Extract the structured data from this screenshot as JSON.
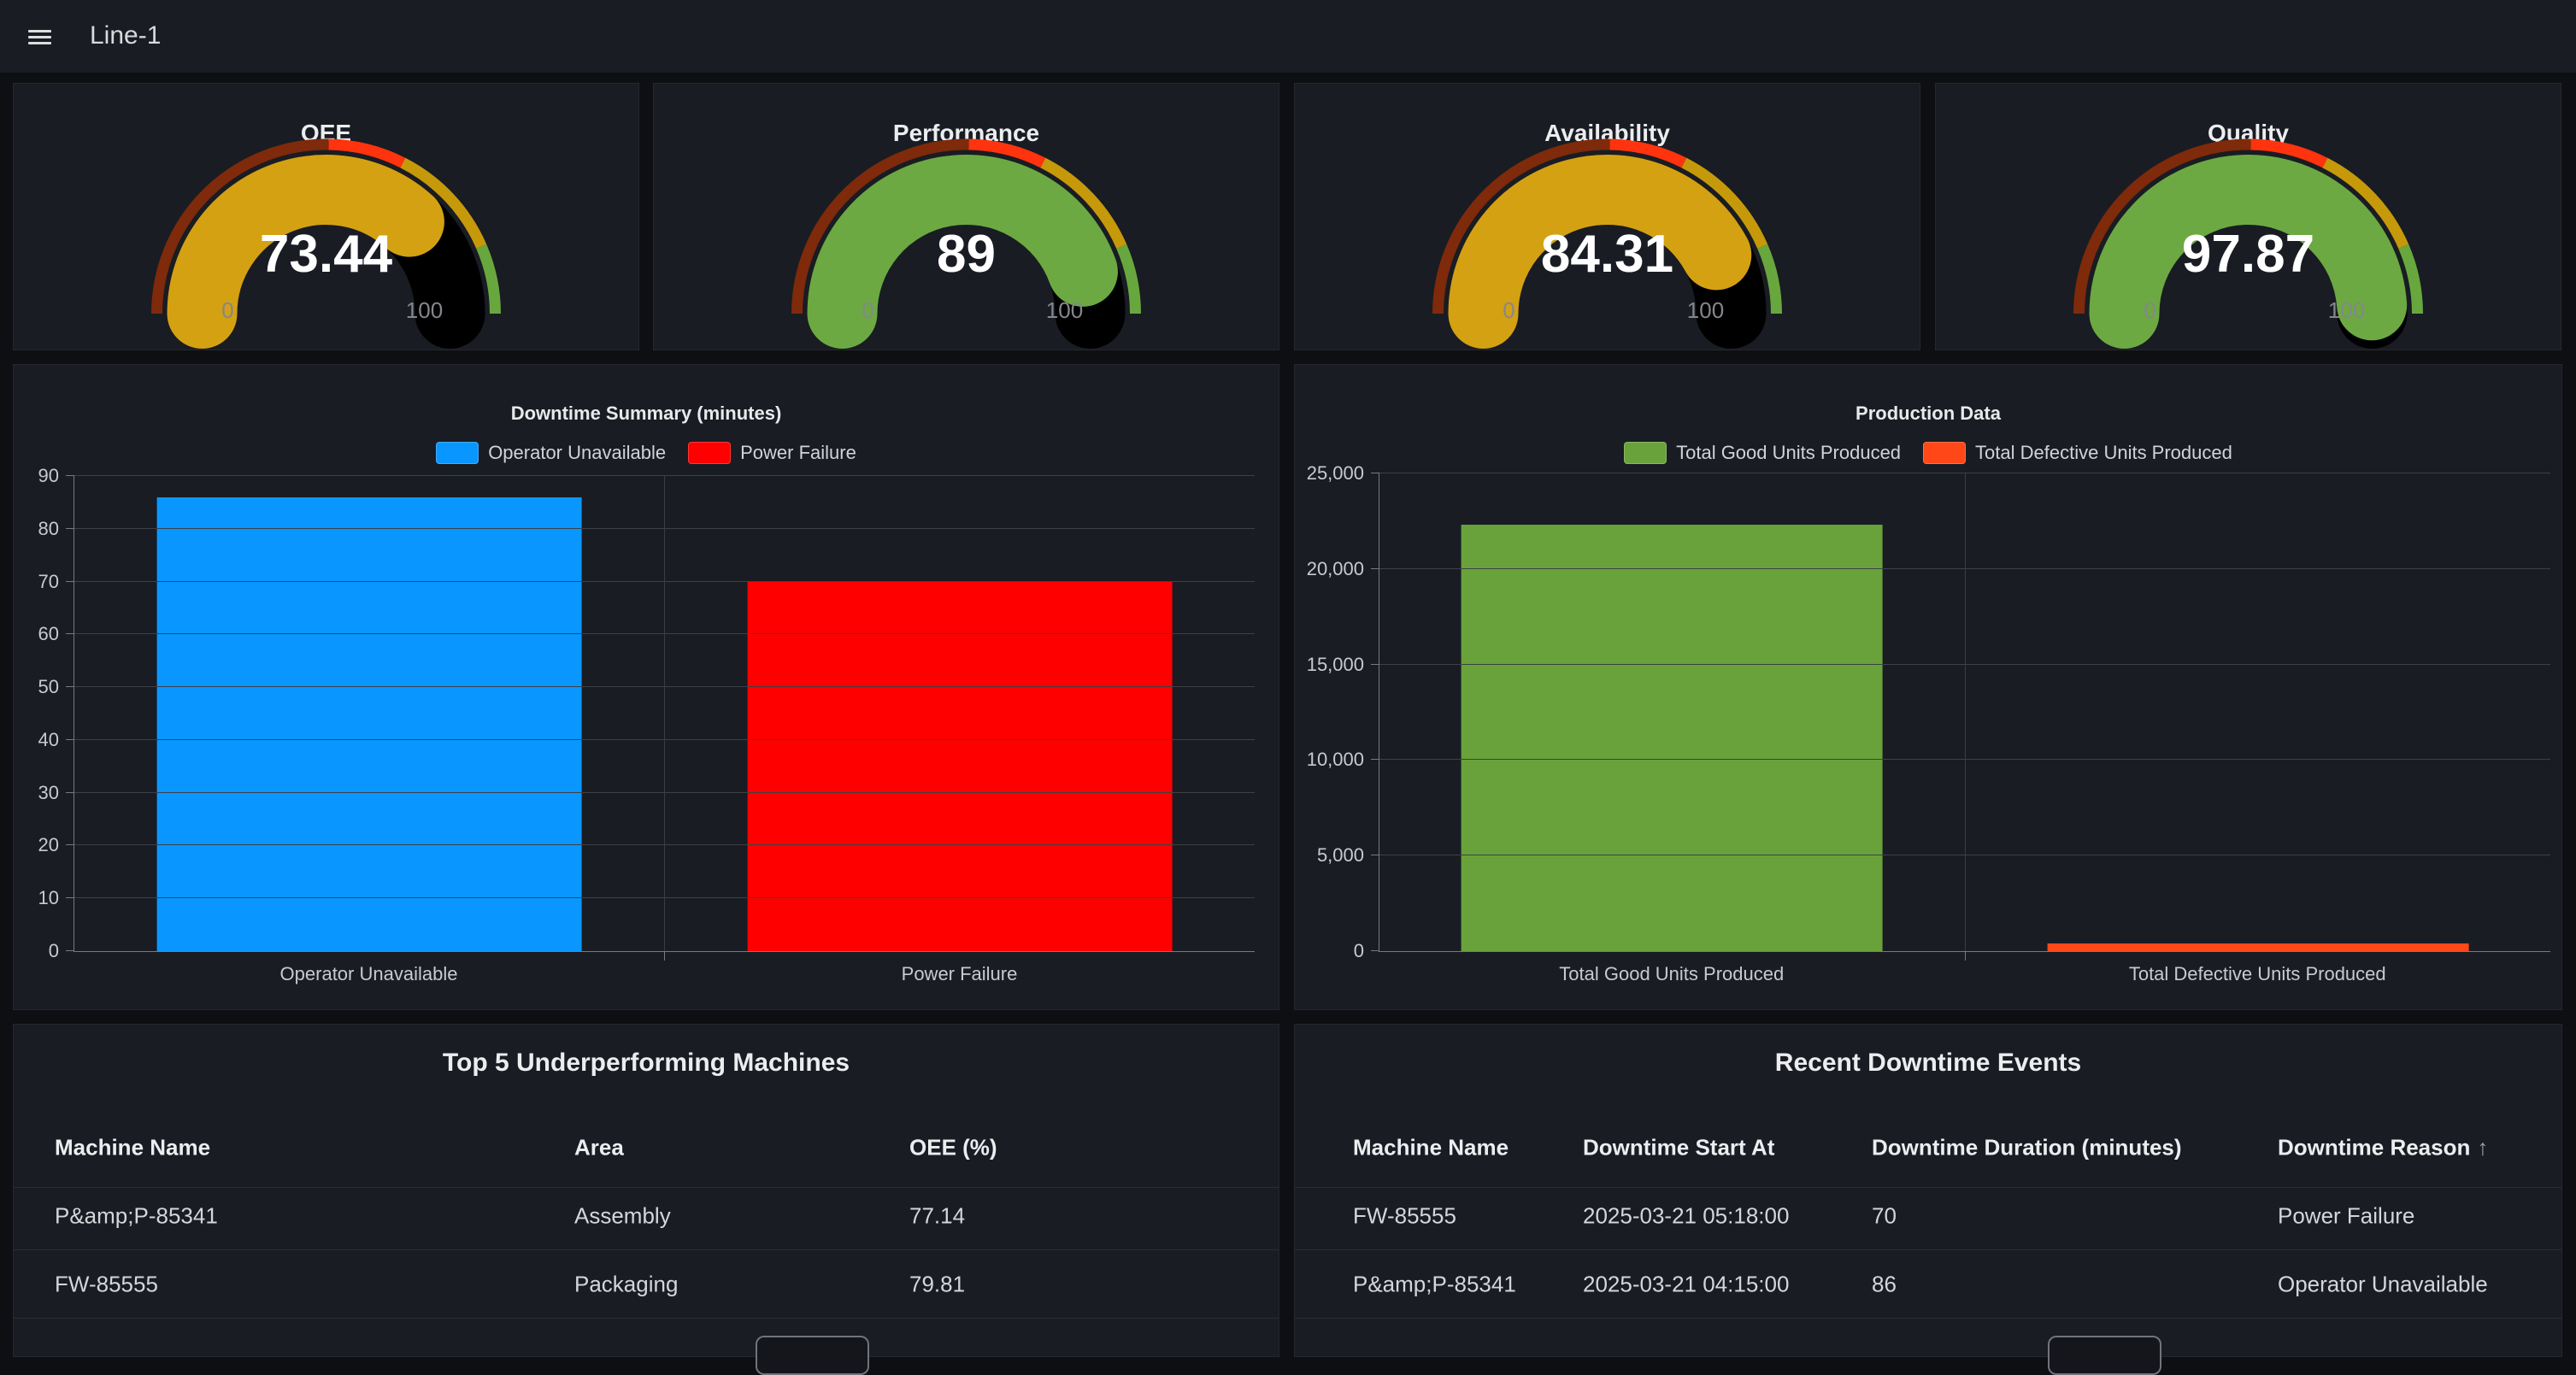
{
  "topbar": {
    "title": "Line-1"
  },
  "gauges": [
    {
      "title": "OEE",
      "value": "73.44",
      "pct": 73.44,
      "color": "#D4A112",
      "min": "0",
      "max": "100"
    },
    {
      "title": "Performance",
      "value": "89",
      "pct": 89,
      "color": "#6CA942",
      "min": "0",
      "max": "100"
    },
    {
      "title": "Availability",
      "value": "84.31",
      "pct": 84.31,
      "color": "#D4A112",
      "min": "0",
      "max": "100"
    },
    {
      "title": "Quality",
      "value": "97.87",
      "pct": 97.87,
      "color": "#6CA942",
      "min": "0",
      "max": "100"
    }
  ],
  "gauge_thresholds": [
    {
      "from": 0,
      "to": 50.5,
      "color": "#7E2A0B"
    },
    {
      "from": 50.5,
      "to": 65,
      "color": "#FF330D"
    },
    {
      "from": 65,
      "to": 87,
      "color": "#C6990B"
    },
    {
      "from": 87,
      "to": 100,
      "color": "#68A73E"
    }
  ],
  "chart_data": [
    {
      "type": "bar",
      "title": "Downtime Summary (minutes)",
      "categories": [
        "Operator Unavailable",
        "Power Failure"
      ],
      "values": [
        86,
        70
      ],
      "colors": [
        "#0997FF",
        "#FF0000"
      ],
      "legend": [
        "Operator Unavailable",
        "Power Failure"
      ],
      "legend_position": "top",
      "grid": true,
      "xlabel": "",
      "ylabel": "",
      "ylim": [
        0,
        90
      ],
      "yticks": [
        0,
        10,
        20,
        30,
        40,
        50,
        60,
        70,
        80,
        90
      ],
      "ytick_labels": [
        "0",
        "10",
        "20",
        "30",
        "40",
        "50",
        "60",
        "70",
        "80",
        "90"
      ]
    },
    {
      "type": "bar",
      "title": "Production Data",
      "categories": [
        "Total Good Units Produced",
        "Total Defective Units Produced"
      ],
      "values": [
        22300,
        400
      ],
      "colors": [
        "#69A23A",
        "#FF4718"
      ],
      "legend": [
        "Total Good Units Produced",
        "Total Defective Units Produced"
      ],
      "legend_position": "top",
      "grid": true,
      "xlabel": "",
      "ylabel": "",
      "ylim": [
        0,
        25000
      ],
      "yticks": [
        0,
        5000,
        10000,
        15000,
        20000,
        25000
      ],
      "ytick_labels": [
        "0",
        "5,000",
        "10,000",
        "15,000",
        "20,000",
        "25,000"
      ]
    }
  ],
  "tables": [
    {
      "title": "Top 5 Underperforming Machines",
      "columns": [
        "Machine Name",
        "Area",
        "OEE (%)"
      ],
      "rows": [
        [
          "P&amp;P-85341",
          "Assembly",
          "77.14"
        ],
        [
          "FW-85555",
          "Packaging",
          "79.81"
        ]
      ]
    },
    {
      "title": "Recent Downtime Events",
      "columns": [
        "Machine Name",
        "Downtime Start At",
        "Downtime Duration (minutes)",
        "Downtime Reason"
      ],
      "sort": {
        "column": "Downtime Reason",
        "direction": "asc",
        "icon": "↑"
      },
      "rows": [
        [
          "FW-85555",
          "2025-03-21 05:18:00",
          "70",
          "Power Failure"
        ],
        [
          "P&amp;P-85341",
          "2025-03-21 04:15:00",
          "86",
          "Operator Unavailable"
        ]
      ]
    }
  ]
}
